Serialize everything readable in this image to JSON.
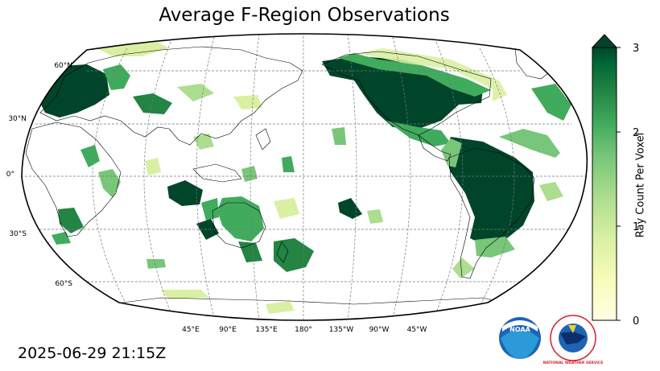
{
  "title": "Average F-Region Observations",
  "timestamp": "2025-06-29 21:15Z",
  "map": {
    "projection": "robinson",
    "central_longitude": 180,
    "graticule_style": "dashed",
    "lat_labels": [
      "60°N",
      "30°N",
      "0°",
      "30°S",
      "60°S"
    ],
    "lon_labels": [
      "45°E",
      "90°E",
      "135°E",
      "180°",
      "135°W",
      "90°W",
      "45°W"
    ]
  },
  "colorbar": {
    "label": "Ray Count Per Voxel",
    "range": [
      0,
      3
    ],
    "ticks": [
      "0",
      "1",
      "2",
      "3"
    ],
    "colormap": "YlGn",
    "extend": "max",
    "colors": [
      "#ffffe5",
      "#f7fcb9",
      "#d9f0a3",
      "#addd8e",
      "#78c679",
      "#41ab5d",
      "#238443",
      "#006837",
      "#004529"
    ]
  },
  "logos": {
    "noaa": "NOAA",
    "nws": "NATIONAL WEATHER SERVICE"
  }
}
